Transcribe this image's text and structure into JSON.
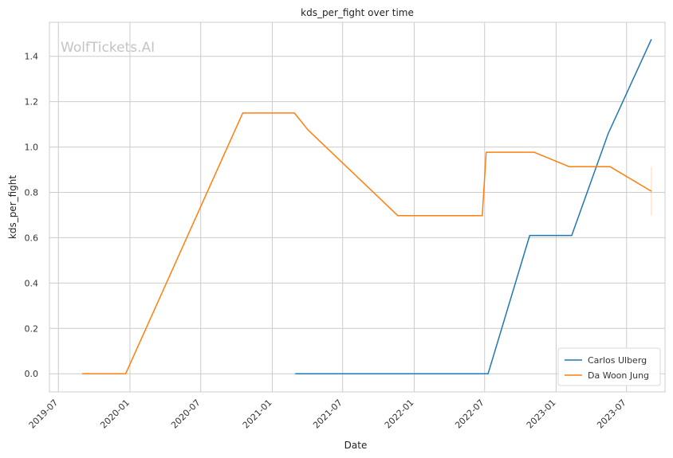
{
  "chart_data": {
    "type": "line",
    "title": "kds_per_fight over time",
    "xlabel": "Date",
    "ylabel": "kds_per_fight",
    "watermark": "WolfTickets.AI",
    "xlim": [
      "2019-06-08",
      "2023-10-08"
    ],
    "ylim": [
      -0.08,
      1.55
    ],
    "x_ticks": [
      "2019-07",
      "2020-01",
      "2020-07",
      "2021-01",
      "2021-07",
      "2022-01",
      "2022-07",
      "2023-01",
      "2023-07"
    ],
    "y_ticks": [
      "0.0",
      "0.2",
      "0.4",
      "0.6",
      "0.8",
      "1.0",
      "1.2",
      "1.4"
    ],
    "grid": true,
    "legend_position": "bottom-right",
    "series": [
      {
        "name": "Carlos Ulberg",
        "color": "#1f77b4",
        "points": [
          {
            "x": "2021-03-01",
            "y": 0.0
          },
          {
            "x": "2022-07-10",
            "y": 0.0
          },
          {
            "x": "2022-10-25",
            "y": 0.61
          },
          {
            "x": "2023-02-10",
            "y": 0.61
          },
          {
            "x": "2023-05-15",
            "y": 1.06
          },
          {
            "x": "2023-09-03",
            "y": 1.475
          }
        ]
      },
      {
        "name": "Da Woon Jung",
        "color": "#ff7f0e",
        "points": [
          {
            "x": "2019-08-31",
            "y": 0.0
          },
          {
            "x": "2019-12-21",
            "y": 0.0
          },
          {
            "x": "2020-10-17",
            "y": 1.15
          },
          {
            "x": "2021-02-27",
            "y": 1.15
          },
          {
            "x": "2021-04-03",
            "y": 1.075
          },
          {
            "x": "2021-11-20",
            "y": 0.697
          },
          {
            "x": "2022-06-25",
            "y": 0.697
          },
          {
            "x": "2022-07-05",
            "y": 0.977
          },
          {
            "x": "2022-11-05",
            "y": 0.977
          },
          {
            "x": "2023-02-04",
            "y": 0.913
          },
          {
            "x": "2023-05-20",
            "y": 0.913
          },
          {
            "x": "2023-09-03",
            "y": 0.805
          }
        ],
        "error_bar": {
          "x": "2023-09-03",
          "low": 0.697,
          "high": 0.913
        }
      }
    ]
  }
}
